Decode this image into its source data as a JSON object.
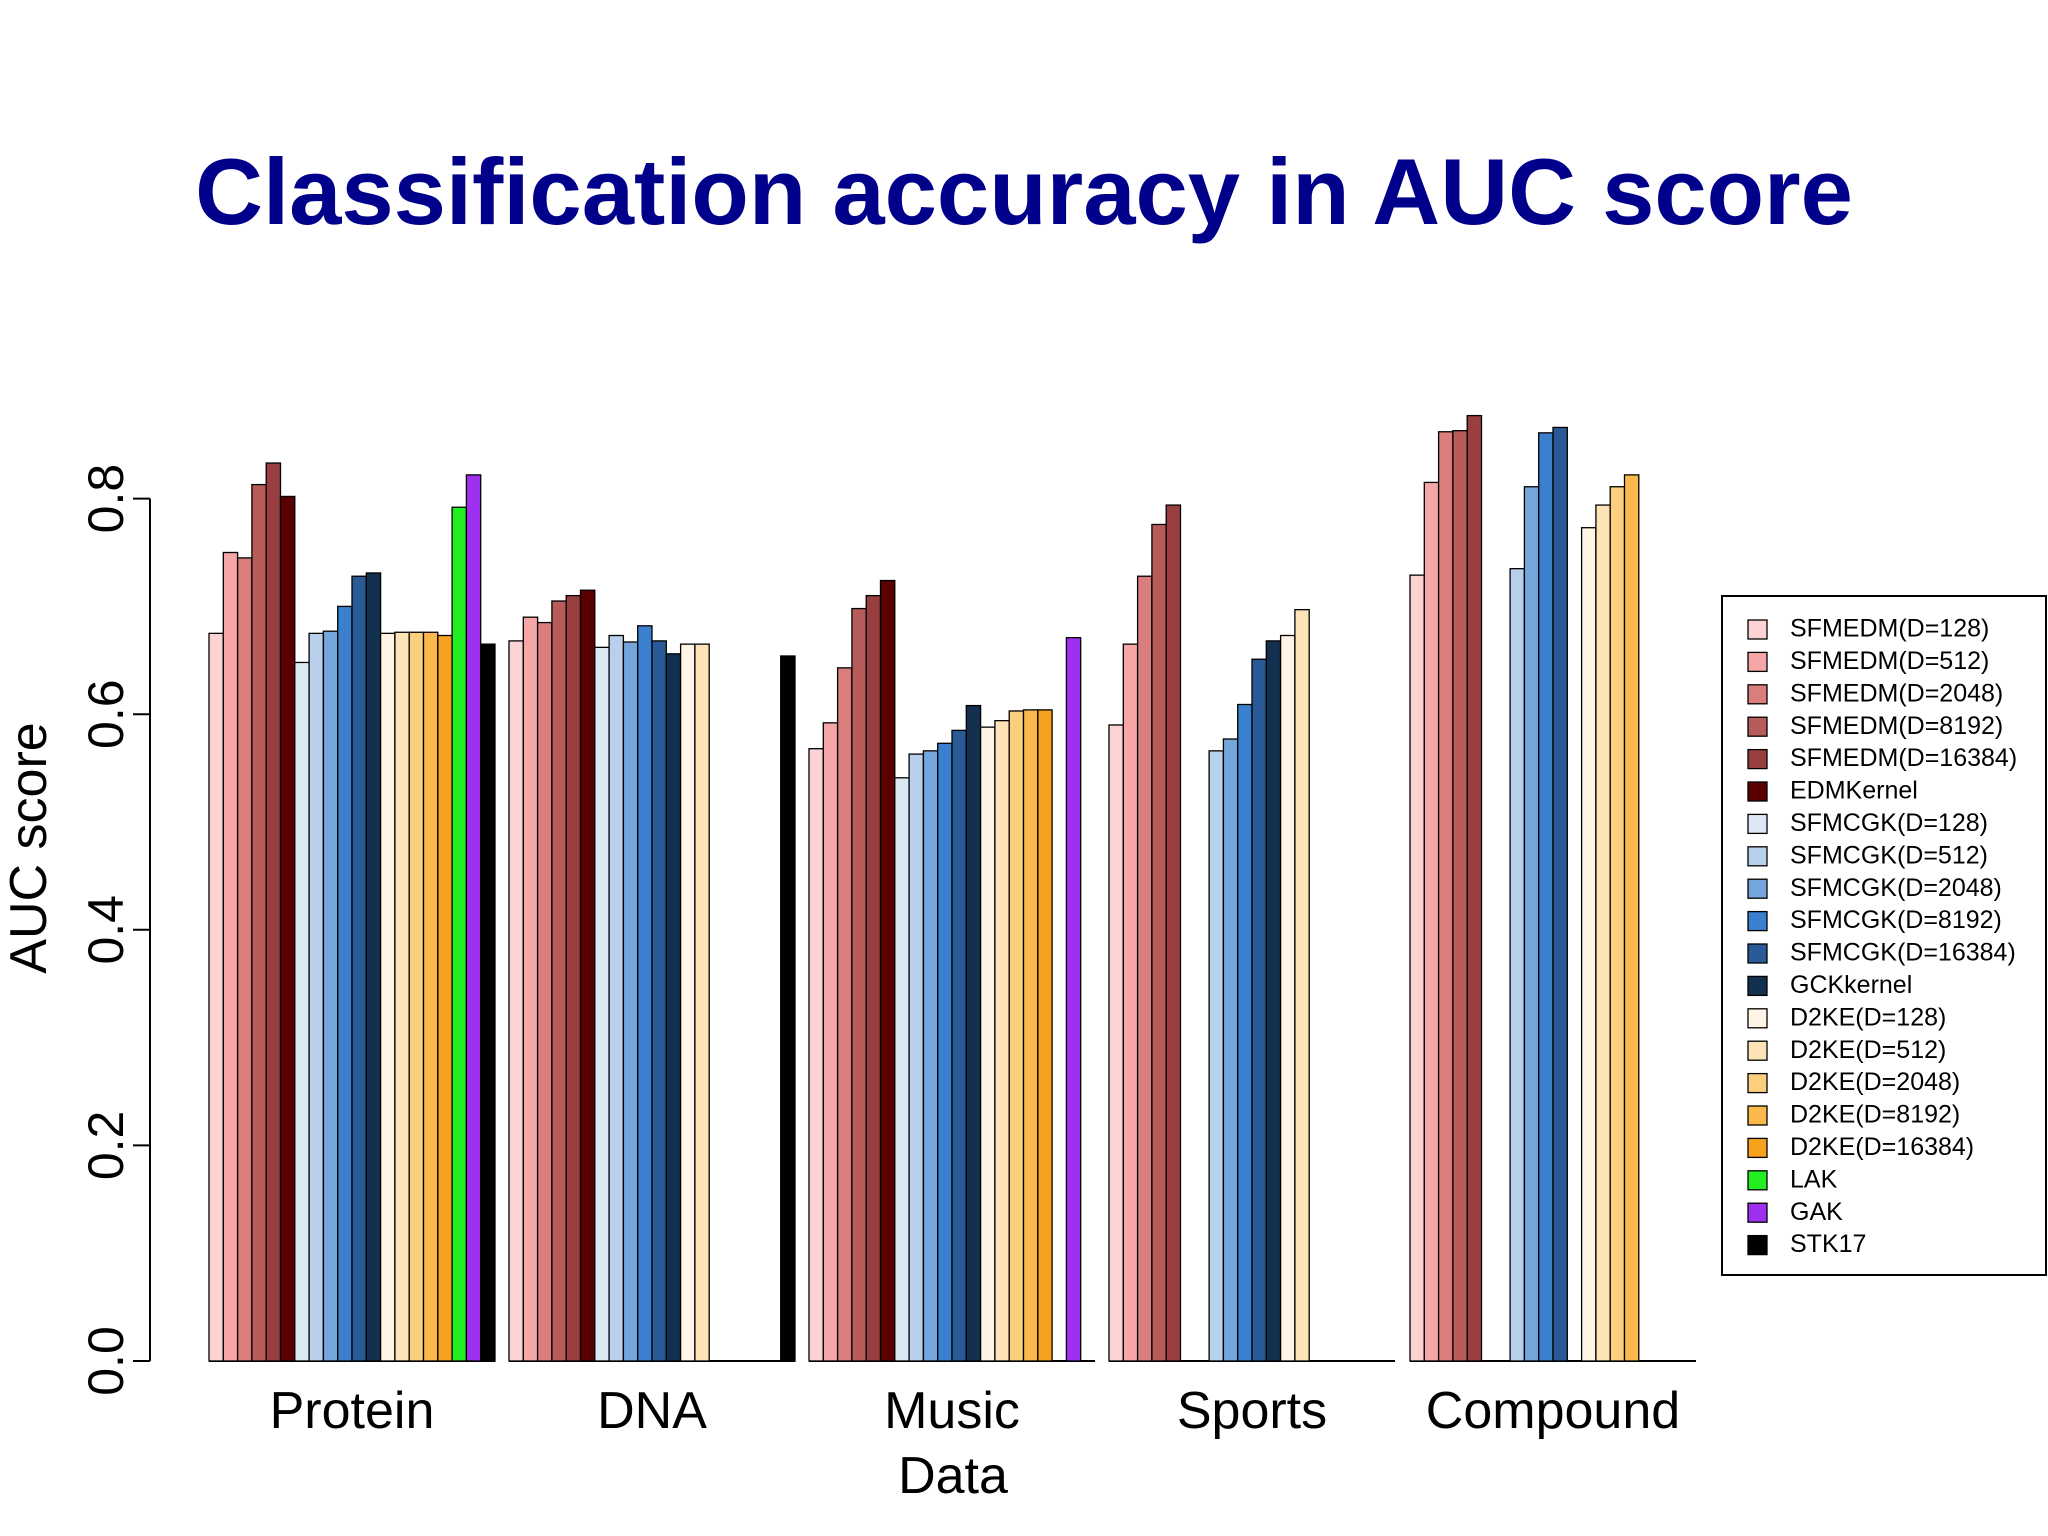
{
  "title": "Classification accuracy in AUC score",
  "chart_data": {
    "type": "bar",
    "title": "Classification accuracy in AUC score",
    "xlabel": "Data",
    "ylabel": "AUC score",
    "ylim": [
      0,
      0.8
    ],
    "yticks": [
      "0.0",
      "0.2",
      "0.4",
      "0.6",
      "0.8"
    ],
    "grid": false,
    "legend_position": "right",
    "categories": [
      "Protein",
      "DNA",
      "Music",
      "Sports",
      "Compound"
    ],
    "series": [
      {
        "name": "SFMEDM(D=128)",
        "color": "#fbd3d3",
        "values": [
          0.675,
          0.668,
          0.568,
          0.59,
          0.729
        ]
      },
      {
        "name": "SFMEDM(D=512)",
        "color": "#f6a6a6",
        "values": [
          0.75,
          0.69,
          0.592,
          0.665,
          0.815
        ]
      },
      {
        "name": "SFMEDM(D=2048)",
        "color": "#d97d7d",
        "values": [
          0.745,
          0.685,
          0.643,
          0.728,
          0.862
        ]
      },
      {
        "name": "SFMEDM(D=8192)",
        "color": "#b85b5b",
        "values": [
          0.813,
          0.705,
          0.698,
          0.776,
          0.863
        ]
      },
      {
        "name": "SFMEDM(D=16384)",
        "color": "#9a3f3f",
        "values": [
          0.833,
          0.71,
          0.71,
          0.794,
          0.877
        ]
      },
      {
        "name": "EDMKernel",
        "color": "#5a0000",
        "values": [
          0.802,
          0.715,
          0.724,
          null,
          null
        ]
      },
      {
        "name": "SFMCGK(D=128)",
        "color": "#dde8f5",
        "values": [
          0.648,
          0.662,
          0.541,
          null,
          null
        ]
      },
      {
        "name": "SFMCGK(D=512)",
        "color": "#b9d0ec",
        "values": [
          0.675,
          0.673,
          0.563,
          0.566,
          0.735
        ]
      },
      {
        "name": "SFMCGK(D=2048)",
        "color": "#74a6dc",
        "values": [
          0.677,
          0.667,
          0.566,
          0.577,
          0.811
        ]
      },
      {
        "name": "SFMCGK(D=8192)",
        "color": "#3a80cf",
        "values": [
          0.7,
          0.682,
          0.573,
          0.609,
          0.861
        ]
      },
      {
        "name": "SFMCGK(D=16384)",
        "color": "#2a5a95",
        "values": [
          0.728,
          0.668,
          0.585,
          0.651,
          0.866
        ]
      },
      {
        "name": "GCKkernel",
        "color": "#13304f",
        "values": [
          0.731,
          0.656,
          0.608,
          0.668,
          null
        ]
      },
      {
        "name": "D2KE(D=128)",
        "color": "#fff4e6",
        "values": [
          0.675,
          0.665,
          0.588,
          0.673,
          0.773
        ]
      },
      {
        "name": "D2KE(D=512)",
        "color": "#fde3b6",
        "values": [
          0.676,
          0.665,
          0.594,
          0.697,
          0.794
        ]
      },
      {
        "name": "D2KE(D=2048)",
        "color": "#fccf7f",
        "values": [
          0.676,
          null,
          0.603,
          null,
          0.811
        ]
      },
      {
        "name": "D2KE(D=8192)",
        "color": "#fbb94d",
        "values": [
          0.676,
          null,
          0.604,
          null,
          0.822
        ]
      },
      {
        "name": "D2KE(D=16384)",
        "color": "#f7a21f",
        "values": [
          0.673,
          null,
          0.604,
          null,
          null
        ]
      },
      {
        "name": "LAK",
        "color": "#22ee22",
        "values": [
          0.792,
          null,
          null,
          null,
          null
        ]
      },
      {
        "name": "GAK",
        "color": "#a030f0",
        "values": [
          0.822,
          null,
          0.671,
          null,
          null
        ]
      },
      {
        "name": "STK17",
        "color": "#000000",
        "values": [
          0.665,
          0.654,
          null,
          null,
          null
        ]
      }
    ]
  }
}
